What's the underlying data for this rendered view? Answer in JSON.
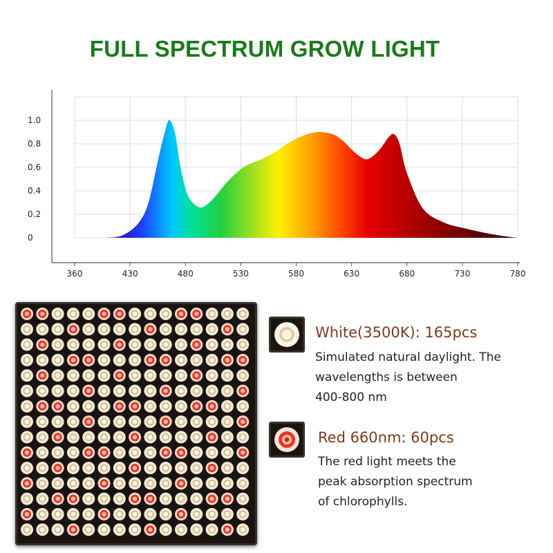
{
  "title": "FULL SPECTRUM GROW LIGHT",
  "chart_data": {
    "type": "area",
    "title": "FULL SPECTRUM GROW LIGHT",
    "xlabel": "",
    "ylabel": "",
    "x_ticks": [
      "360",
      "430",
      "480",
      "530",
      "580",
      "630",
      "680",
      "730",
      "780"
    ],
    "y_ticks": [
      "0",
      "0.2",
      "0.4",
      "0.6",
      "0.8",
      "1.0"
    ],
    "xlim": [
      360,
      780
    ],
    "ylim": [
      0,
      1.0
    ],
    "grid": true,
    "fill": "rainbow-by-wavelength",
    "x": [
      390,
      405,
      420,
      430,
      440,
      447,
      450,
      455,
      460,
      465,
      470,
      478,
      485,
      495,
      505,
      520,
      535,
      550,
      565,
      580,
      592,
      605,
      615,
      625,
      635,
      642,
      650,
      658,
      663,
      668,
      675,
      690,
      710,
      730,
      750,
      770,
      780
    ],
    "values": [
      0,
      0.02,
      0.12,
      0.3,
      0.7,
      0.95,
      1.0,
      0.9,
      0.62,
      0.42,
      0.32,
      0.26,
      0.28,
      0.37,
      0.48,
      0.6,
      0.66,
      0.73,
      0.82,
      0.88,
      0.9,
      0.88,
      0.82,
      0.73,
      0.67,
      0.69,
      0.76,
      0.86,
      0.88,
      0.8,
      0.55,
      0.25,
      0.13,
      0.08,
      0.04,
      0.01,
      0
    ]
  },
  "panel": {
    "rows": 15,
    "cols": 15,
    "white_color": "#f1ead8",
    "red_color": "#e8372c"
  },
  "legend": {
    "white": {
      "title": "White(3500K): 165pcs",
      "desc": [
        "Simulated natural daylight. The",
        "wavelengths is between",
        "400-800 nm"
      ]
    },
    "red": {
      "title": "Red 660nm: 60pcs",
      "desc": [
        "The red light meets the",
        "peak absorption spectrum",
        "of chlorophylls."
      ]
    }
  }
}
